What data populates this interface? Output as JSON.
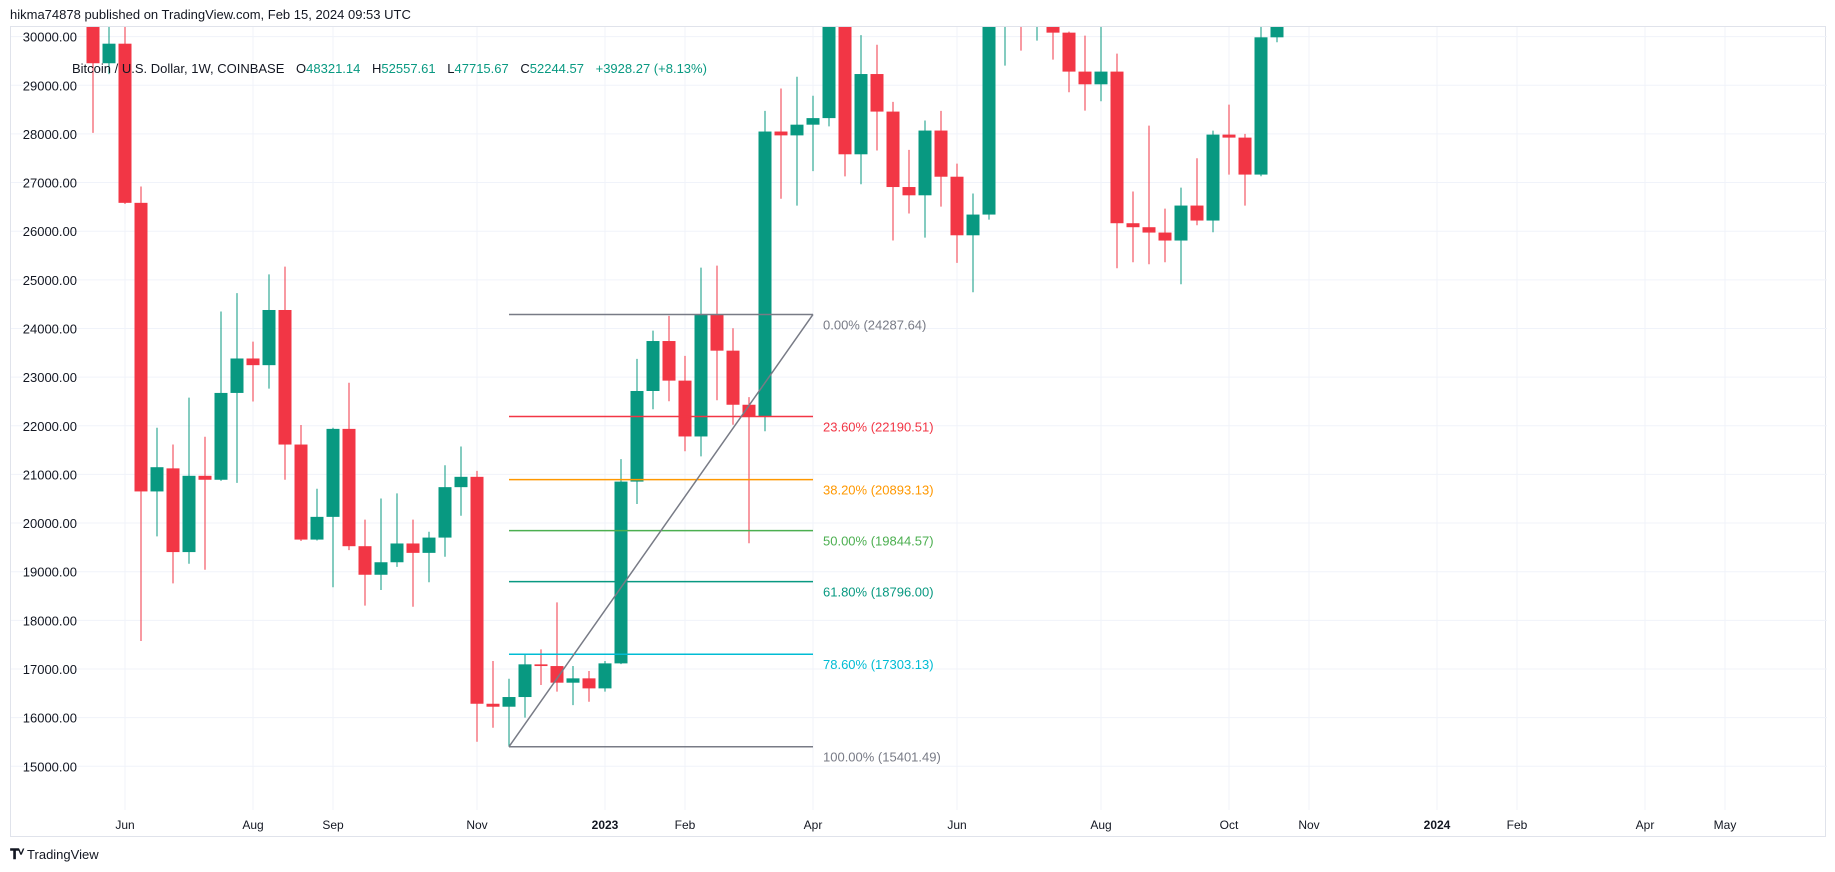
{
  "header": {
    "published": "hikma74878 published on TradingView.com, Feb 15, 2024 09:53 UTC"
  },
  "legend": {
    "symbol": "Bitcoin / U.S. Dollar, 1W, COINBASE",
    "o_label": "O",
    "open": "48321.14",
    "h_label": "H",
    "high": "52557.61",
    "l_label": "L",
    "low": "47715.67",
    "c_label": "C",
    "close": "52244.57",
    "change": "+3928.27 (+8.13%)"
  },
  "footer": {
    "logo_text": "TradingView",
    "logo_icon": "tradingview-logo-icon"
  },
  "colors": {
    "up": "#089981",
    "down": "#f23645",
    "grid": "#f0f3fa",
    "axis_text": "#131722"
  },
  "chart_data": {
    "type": "candlestick",
    "title": "Bitcoin / U.S. Dollar, 1W, COINBASE",
    "ylim": [
      13525,
      30198
    ],
    "y_ticks": [
      30000,
      29000,
      28000,
      27000,
      26000,
      25000,
      24000,
      23000,
      22000,
      21000,
      20000,
      19000,
      18000,
      17000,
      16000,
      15000
    ],
    "x_ticks": [
      {
        "label": "Jun",
        "bar": 2,
        "bold": false
      },
      {
        "label": "Aug",
        "bar": 10,
        "bold": false
      },
      {
        "label": "Sep",
        "bar": 15,
        "bold": false
      },
      {
        "label": "Nov",
        "bar": 24,
        "bold": false
      },
      {
        "label": "2023",
        "bar": 32,
        "bold": true
      },
      {
        "label": "Feb",
        "bar": 37,
        "bold": false
      },
      {
        "label": "Apr",
        "bar": 45,
        "bold": false
      },
      {
        "label": "Jun",
        "bar": 54,
        "bold": false
      },
      {
        "label": "Aug",
        "bar": 63,
        "bold": false
      },
      {
        "label": "Oct",
        "bar": 71,
        "bold": false
      },
      {
        "label": "Nov",
        "bar": 76,
        "bold": false
      },
      {
        "label": "2024",
        "bar": 84,
        "bold": true
      },
      {
        "label": "Feb",
        "bar": 89,
        "bold": false
      },
      {
        "label": "Apr",
        "bar": 97,
        "bold": false
      },
      {
        "label": "May",
        "bar": 102,
        "bold": false
      }
    ],
    "candles_ohlc": [
      [
        30400,
        30700,
        28022,
        29453
      ],
      [
        29453,
        31700,
        29228,
        29855
      ],
      [
        29855,
        31600,
        26560,
        26583
      ],
      [
        26583,
        26920,
        17575,
        20650
      ],
      [
        20650,
        21960,
        19725,
        21148
      ],
      [
        21124,
        21614,
        18760,
        19403
      ],
      [
        19403,
        22579,
        19162,
        20971
      ],
      [
        20971,
        21775,
        19041,
        20890
      ],
      [
        20890,
        24348,
        20867,
        22675
      ],
      [
        22675,
        24726,
        20826,
        23383
      ],
      [
        23383,
        23729,
        22499,
        23246
      ],
      [
        23246,
        25112,
        22764,
        24380
      ],
      [
        24380,
        25272,
        20891,
        21614
      ],
      [
        21614,
        22016,
        19630,
        19660
      ],
      [
        19660,
        20706,
        19640,
        20127
      ],
      [
        20127,
        21960,
        18680,
        21936
      ],
      [
        21936,
        22885,
        19444,
        19524
      ],
      [
        19524,
        20071,
        18302,
        18937
      ],
      [
        18937,
        20505,
        18623,
        19194
      ],
      [
        19194,
        20609,
        19098,
        19580
      ],
      [
        19580,
        20071,
        18278,
        19387
      ],
      [
        19387,
        19822,
        18784,
        19701
      ],
      [
        19701,
        21188,
        19307,
        20738
      ],
      [
        20738,
        21574,
        20151,
        20950
      ],
      [
        20950,
        21072,
        15504,
        16285
      ],
      [
        16285,
        17164,
        15792,
        16224
      ],
      [
        16224,
        16800,
        15401,
        16423
      ],
      [
        16423,
        17300,
        16000,
        17095
      ],
      [
        17095,
        17404,
        16670,
        17060
      ],
      [
        17060,
        18370,
        16533,
        16718
      ],
      [
        16718,
        17060,
        16258,
        16807
      ],
      [
        16807,
        16958,
        16327,
        16601
      ],
      [
        16601,
        17163,
        16533,
        17115
      ],
      [
        17115,
        21313,
        17100,
        20852
      ],
      [
        20852,
        23374,
        20392,
        22715
      ],
      [
        22715,
        23955,
        22340,
        23742
      ],
      [
        23742,
        24259,
        22503,
        22928
      ],
      [
        22928,
        23437,
        21476,
        21780
      ],
      [
        21780,
        25251,
        21370,
        24288
      ],
      [
        24288,
        25293,
        22524,
        23544
      ],
      [
        23544,
        24004,
        22021,
        22432
      ],
      [
        22432,
        22588,
        19585,
        22184
      ],
      [
        22184,
        28473,
        21886,
        28049
      ],
      [
        28049,
        28934,
        26668,
        27970
      ],
      [
        27970,
        29175,
        26526,
        28190
      ],
      [
        28190,
        28785,
        27234,
        28325
      ],
      [
        28325,
        31000,
        28155,
        30400
      ],
      [
        30400,
        30600,
        27128,
        27581
      ],
      [
        27581,
        30032,
        26965,
        29231
      ],
      [
        29231,
        29834,
        27659,
        28459
      ],
      [
        28459,
        28658,
        25810,
        26908
      ],
      [
        26908,
        27673,
        26363,
        26738
      ],
      [
        26738,
        28275,
        25867,
        28069
      ],
      [
        28069,
        28473,
        26505,
        27120
      ],
      [
        27120,
        27390,
        25350,
        25916
      ],
      [
        25916,
        26774,
        24746,
        26342
      ],
      [
        26342,
        31400,
        26239,
        30460
      ],
      [
        30460,
        31300,
        29404,
        30580
      ],
      [
        30580,
        31500,
        29712,
        30250
      ],
      [
        30250,
        31800,
        29918,
        30300
      ],
      [
        30300,
        30350,
        29527,
        30082
      ],
      [
        30082,
        30103,
        28856,
        29281
      ],
      [
        29281,
        30020,
        28479,
        29020
      ],
      [
        29020,
        30300,
        28671,
        29281
      ],
      [
        29281,
        29650,
        25239,
        26164
      ],
      [
        26164,
        26815,
        25362,
        26082
      ],
      [
        26082,
        28171,
        25321,
        25972
      ],
      [
        25972,
        26465,
        25362,
        25808
      ],
      [
        25808,
        26897,
        24910,
        26527
      ],
      [
        26527,
        27500,
        26123,
        26219
      ],
      [
        26219,
        28068,
        25979,
        27986
      ],
      [
        27986,
        28603,
        27164,
        27924
      ],
      [
        27924,
        28000,
        26527,
        27164
      ],
      [
        27164,
        30380,
        27130,
        29986
      ],
      [
        29986,
        35280,
        29884,
        34500
      ]
    ],
    "fib": {
      "start_bar": 26,
      "end_bar": 45,
      "low": 15401.49,
      "high": 24287.64,
      "trend_color": "#787b86",
      "levels": [
        {
          "label": "0.00% (24287.64)",
          "price": 24287.64,
          "color": "#787b86"
        },
        {
          "label": "23.60% (22190.51)",
          "price": 22190.51,
          "color": "#f23645"
        },
        {
          "label": "38.20% (20893.13)",
          "price": 20893.13,
          "color": "#ff9800"
        },
        {
          "label": "50.00% (19844.57)",
          "price": 19844.57,
          "color": "#4caf50"
        },
        {
          "label": "61.80% (18796.00)",
          "price": 18796.0,
          "color": "#089981"
        },
        {
          "label": "78.60% (17303.13)",
          "price": 17303.13,
          "color": "#00bcd4"
        },
        {
          "label": "100.00% (15401.49)",
          "price": 15401.49,
          "color": "#787b86"
        }
      ]
    }
  }
}
